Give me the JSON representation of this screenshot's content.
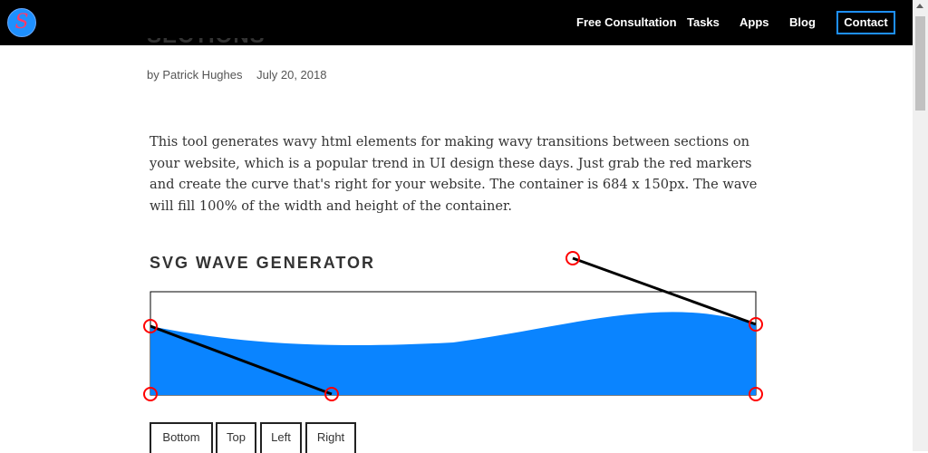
{
  "nav": {
    "logo_letter": "S",
    "links": [
      "Free Consultation",
      "Tasks",
      "Apps",
      "Blog"
    ],
    "contact_label": "Contact"
  },
  "article": {
    "title_partial": "SECTIONS",
    "author": "by Patrick Hughes",
    "date": "July 20, 2018",
    "intro": "This tool generates wavy html elements for making wavy transitions between sections on your website, which is a popular trend in UI design these days. Just grab the red markers and create the curve that's right for your website. The container is 684 x 150px. The wave will fill 100% of the width and height of the container."
  },
  "generator": {
    "heading": "SVG WAVE GENERATOR",
    "wave_color": "#0a84ff",
    "marker_color": "#ff0000",
    "buttons": [
      "Bottom",
      "Top",
      "Left",
      "Right"
    ]
  },
  "colors": {
    "nav_bg": "#000000",
    "accent": "#1e90ff"
  }
}
